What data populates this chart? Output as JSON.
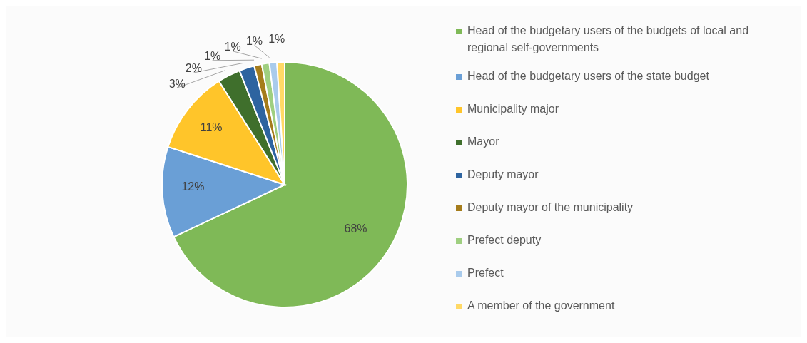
{
  "chart_data": {
    "type": "pie",
    "categories": [
      "Head of the budgetary users of the budgets of local and regional self-governments",
      "Head of the budgetary users of the state budget",
      "Municipality major",
      "Mayor",
      "Deputy mayor",
      "Deputy mayor of the municipality",
      "Prefect deputy",
      "Prefect",
      "A member of the government"
    ],
    "values": [
      68,
      12,
      11,
      3,
      2,
      1,
      1,
      1,
      1
    ],
    "value_labels": [
      "68%",
      "12%",
      "11%",
      "3%",
      "2%",
      "1%",
      "1%",
      "1%",
      "1%"
    ],
    "colors": [
      "#7fb957",
      "#6a9fd6",
      "#ffc52a",
      "#3f6f2c",
      "#2e64a0",
      "#a57c1b",
      "#9fcf80",
      "#a9cbec",
      "#ffd966"
    ],
    "legend": "right"
  }
}
